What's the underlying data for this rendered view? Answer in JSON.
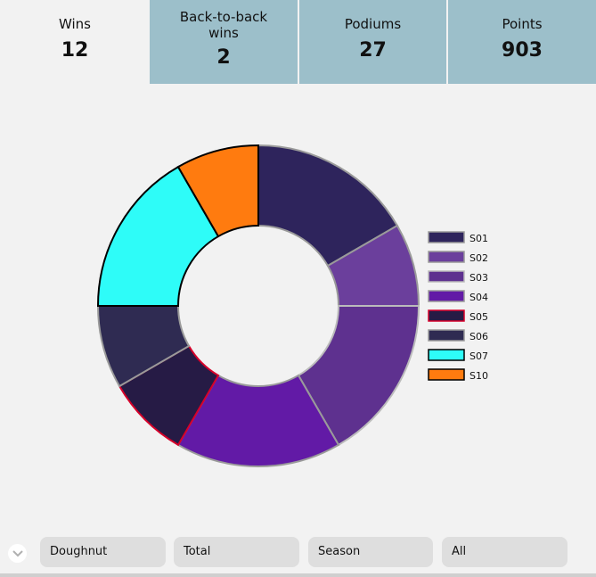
{
  "stats": [
    {
      "label": "Wins",
      "value": "12"
    },
    {
      "label": "Back-to-back wins",
      "value": "2"
    },
    {
      "label": "Podiums",
      "value": "27"
    },
    {
      "label": "Points",
      "value": "903"
    }
  ],
  "chart_data": {
    "type": "doughnut",
    "title": "",
    "legend_position": "right",
    "categories": [
      "S01",
      "S02",
      "S03",
      "S04",
      "S05",
      "S06",
      "S07",
      "S10"
    ],
    "values": [
      2,
      1,
      2,
      2,
      1,
      1,
      2,
      1
    ],
    "colors": [
      "#2e245c",
      "#6b3f9c",
      "#5e318f",
      "#621aa6",
      "#261b45",
      "#2f2b52",
      "#2efcf8",
      "#ff7b0f"
    ],
    "outlines": [
      "#9a9a9a",
      "#9a9a9a",
      "#bbbbbb",
      "#9a9a9a",
      "#d6002a",
      "#9a9a9a",
      "#000000",
      "#000000"
    ]
  },
  "controls": {
    "chart_type": "Doughnut",
    "measure": "Total",
    "group_by": "Season",
    "filter": "All"
  }
}
